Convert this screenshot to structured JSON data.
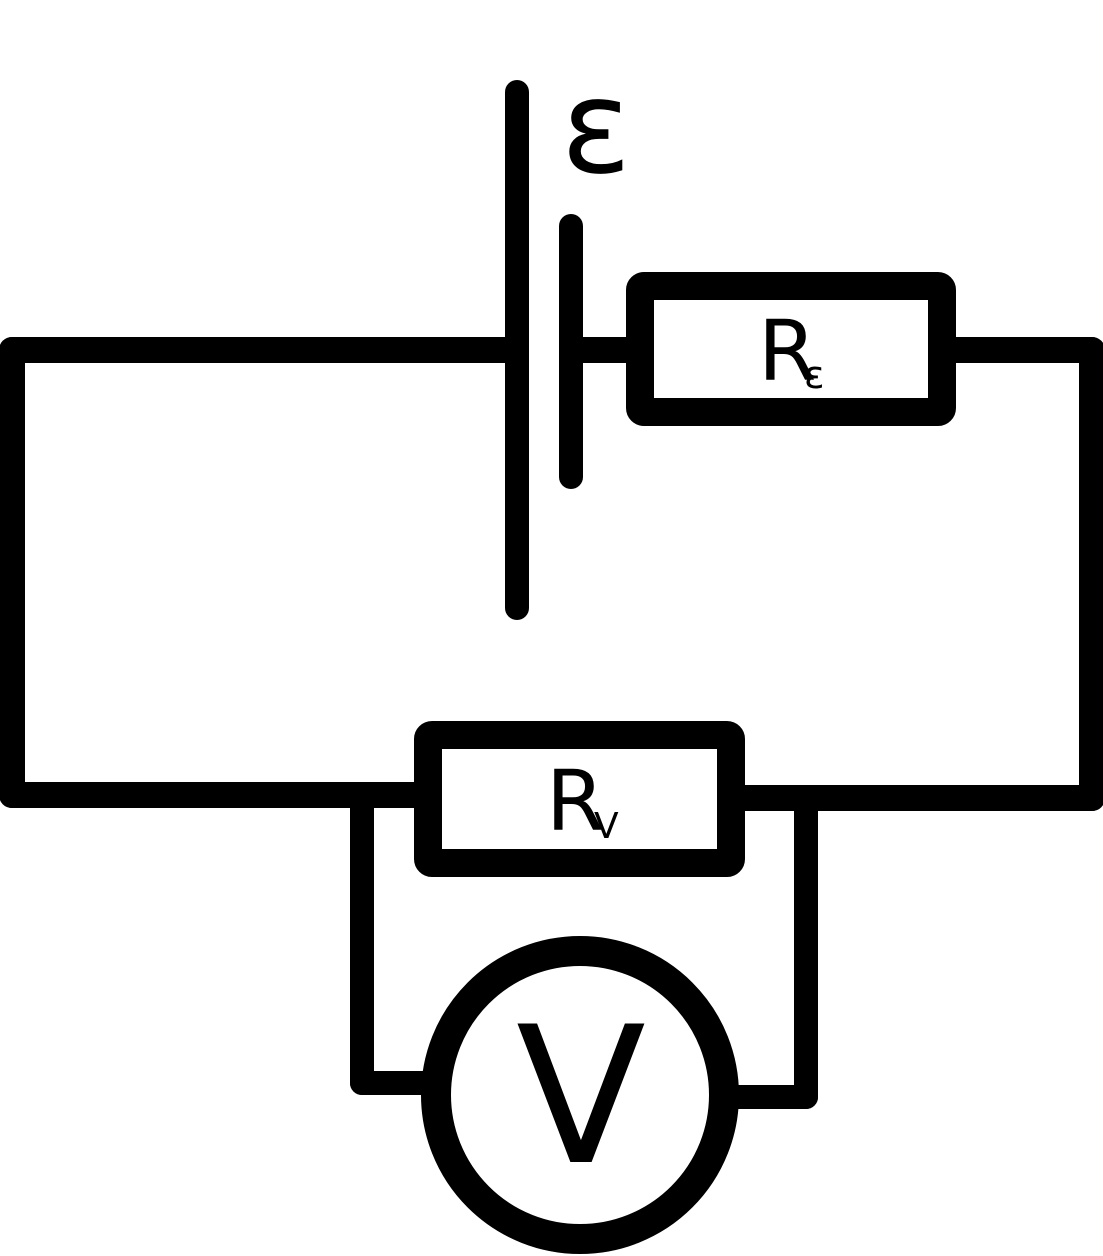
{
  "emf": {
    "symbol": "ε"
  },
  "resistors": {
    "internal": {
      "letter": "R",
      "subscript": "ε"
    },
    "load": {
      "letter": "R",
      "subscript": "V"
    }
  },
  "voltmeter": {
    "letter": "V"
  }
}
